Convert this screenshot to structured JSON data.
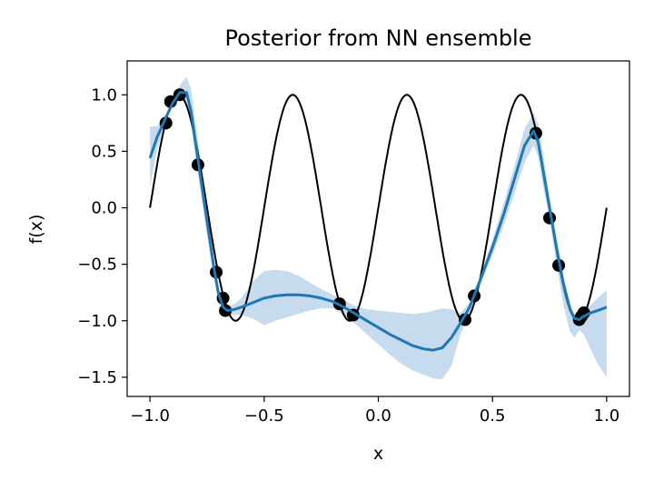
{
  "chart_data": {
    "type": "line",
    "title": "Posterior from NN ensemble",
    "xlabel": "x",
    "ylabel": "f(x)",
    "xlim": [
      -1.1,
      1.1
    ],
    "ylim": [
      -1.67,
      1.3
    ],
    "xticks": [
      -1.0,
      -0.5,
      0.0,
      0.5,
      1.0
    ],
    "xtick_labels": [
      "−1.0",
      "−0.5",
      "0.0",
      "0.5",
      "1.0"
    ],
    "yticks": [
      1.0,
      0.5,
      0.0,
      -0.5,
      -1.0,
      -1.5
    ],
    "ytick_labels": [
      "1.0",
      "0.5",
      "0.0",
      "−0.5",
      "−1.0",
      "−1.5"
    ],
    "grid": false,
    "legend": "none",
    "colors": {
      "true_function": "#000000",
      "mean": "#1f77b4",
      "band": "#c6dcee",
      "points": "#000000"
    },
    "true_function": {
      "expression": "sin(4*pi*x)",
      "x_range": [
        -1.0,
        1.0
      ]
    },
    "observations": {
      "x": [
        -0.93,
        -0.91,
        -0.87,
        -0.79,
        -0.71,
        -0.68,
        -0.67,
        -0.17,
        -0.11,
        0.38,
        0.42,
        0.69,
        0.75,
        0.79,
        0.88,
        0.89,
        0.9
      ],
      "y": [
        0.75,
        0.94,
        1.0,
        0.38,
        -0.57,
        -0.8,
        -0.91,
        -0.85,
        -0.95,
        -0.99,
        -0.78,
        0.66,
        -0.09,
        -0.51,
        -0.99,
        -0.96,
        -0.93
      ]
    },
    "series": [
      {
        "x": [
          -1.0,
          -0.97,
          -0.93,
          -0.9,
          -0.87,
          -0.84,
          -0.82,
          -0.79,
          -0.75,
          -0.72,
          -0.7,
          -0.68,
          -0.66,
          -0.63,
          -0.6,
          -0.55,
          -0.5,
          -0.45,
          -0.4,
          -0.35,
          -0.3,
          -0.25,
          -0.2,
          -0.15,
          -0.1,
          -0.05,
          0.0,
          0.05,
          0.1,
          0.15,
          0.2,
          0.24,
          0.28,
          0.32,
          0.36,
          0.4,
          0.45,
          0.5,
          0.55,
          0.6,
          0.64,
          0.68,
          0.7,
          0.72,
          0.75,
          0.78,
          0.81,
          0.84,
          0.86,
          0.88,
          0.9,
          0.93,
          0.96,
          1.0
        ],
        "y": [
          0.44,
          0.62,
          0.8,
          0.93,
          1.02,
          1.02,
          0.85,
          0.43,
          -0.12,
          -0.53,
          -0.76,
          -0.88,
          -0.91,
          -0.9,
          -0.88,
          -0.84,
          -0.8,
          -0.78,
          -0.77,
          -0.77,
          -0.78,
          -0.8,
          -0.83,
          -0.88,
          -0.94,
          -1.0,
          -1.06,
          -1.12,
          -1.17,
          -1.22,
          -1.25,
          -1.26,
          -1.24,
          -1.15,
          -1.02,
          -0.88,
          -0.62,
          -0.35,
          -0.05,
          0.28,
          0.55,
          0.68,
          0.58,
          0.35,
          0.0,
          -0.35,
          -0.67,
          -0.9,
          -0.98,
          -0.99,
          -0.96,
          -0.93,
          -0.91,
          -0.88
        ]
      }
    ],
    "band": {
      "x": [
        -1.0,
        -0.97,
        -0.93,
        -0.9,
        -0.87,
        -0.84,
        -0.82,
        -0.79,
        -0.75,
        -0.72,
        -0.7,
        -0.68,
        -0.66,
        -0.63,
        -0.6,
        -0.55,
        -0.5,
        -0.45,
        -0.4,
        -0.35,
        -0.3,
        -0.25,
        -0.2,
        -0.15,
        -0.1,
        -0.05,
        0.0,
        0.05,
        0.1,
        0.15,
        0.2,
        0.24,
        0.28,
        0.32,
        0.36,
        0.4,
        0.45,
        0.5,
        0.55,
        0.6,
        0.64,
        0.68,
        0.7,
        0.72,
        0.75,
        0.78,
        0.81,
        0.84,
        0.86,
        0.88,
        0.9,
        0.93,
        0.96,
        1.0
      ],
      "upper": [
        0.72,
        0.72,
        0.82,
        0.97,
        1.08,
        1.16,
        1.05,
        0.6,
        0.0,
        -0.45,
        -0.7,
        -0.85,
        -0.88,
        -0.85,
        -0.8,
        -0.65,
        -0.56,
        -0.55,
        -0.56,
        -0.6,
        -0.66,
        -0.72,
        -0.77,
        -0.82,
        -0.87,
        -0.9,
        -0.91,
        -0.92,
        -0.93,
        -0.94,
        -0.93,
        -0.91,
        -0.89,
        -0.9,
        -0.93,
        -0.84,
        -0.58,
        -0.28,
        0.05,
        0.4,
        0.7,
        0.84,
        0.74,
        0.5,
        0.1,
        -0.25,
        -0.58,
        -0.85,
        -0.95,
        -0.96,
        -0.92,
        -0.86,
        -0.8,
        -0.73
      ],
      "lower": [
        0.19,
        0.5,
        0.78,
        0.9,
        0.96,
        0.94,
        0.72,
        0.3,
        -0.25,
        -0.62,
        -0.83,
        -0.92,
        -0.95,
        -0.95,
        -0.95,
        -0.98,
        -1.04,
        -1.0,
        -0.97,
        -0.94,
        -0.91,
        -0.89,
        -0.89,
        -0.95,
        -1.03,
        -1.12,
        -1.21,
        -1.3,
        -1.38,
        -1.44,
        -1.48,
        -1.51,
        -1.52,
        -1.4,
        -1.12,
        -0.93,
        -0.67,
        -0.42,
        -0.15,
        0.15,
        0.4,
        0.55,
        0.45,
        0.2,
        -0.1,
        -0.5,
        -0.85,
        -1.1,
        -1.15,
        -1.08,
        -1.12,
        -1.25,
        -1.38,
        -1.5
      ]
    }
  }
}
